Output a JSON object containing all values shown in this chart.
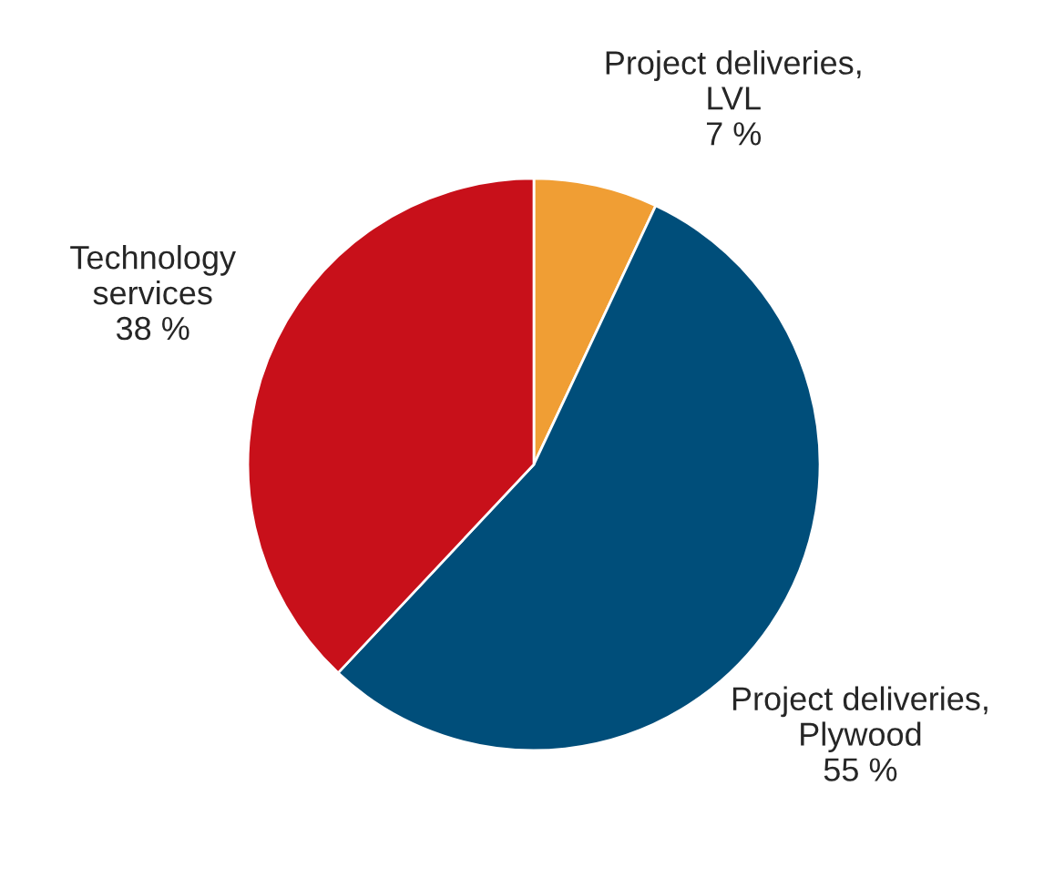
{
  "chart_data": {
    "type": "pie",
    "categories": [
      "Project deliveries,\nLVL",
      "Project deliveries,\nPlywood",
      "Technology\nservices"
    ],
    "values": [
      7,
      55,
      38
    ],
    "value_labels": [
      "7 %",
      "55 %",
      "38 %"
    ],
    "colors": [
      "#f09e34",
      "#004e7a",
      "#c8101a"
    ],
    "legend": false
  }
}
